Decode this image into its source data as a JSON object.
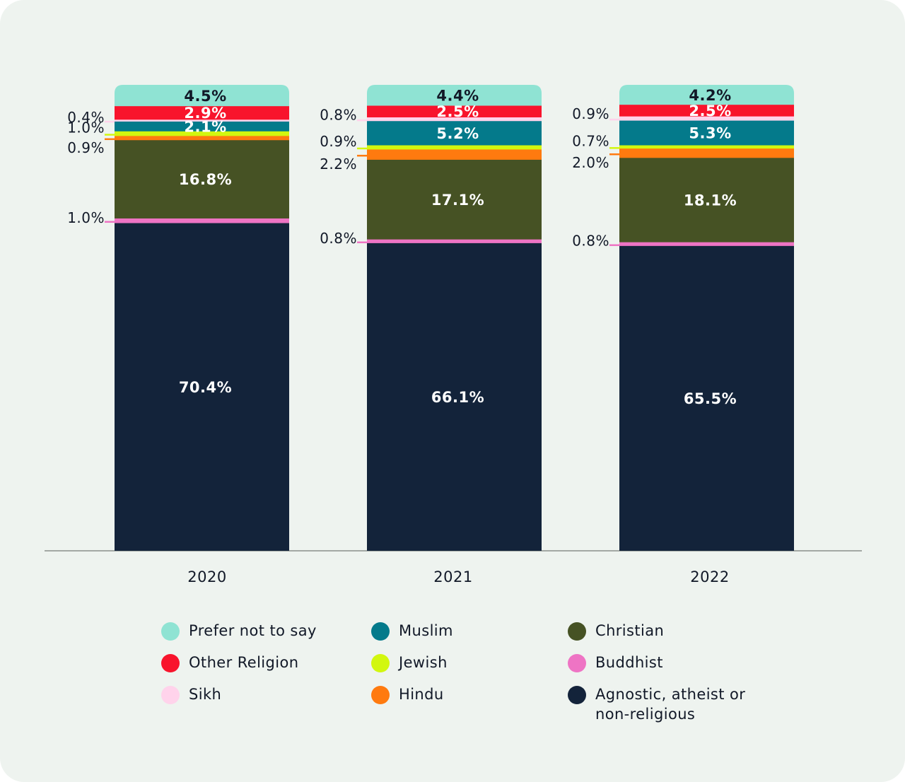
{
  "colors": {
    "background": "#eef3ef",
    "axis": "#8a8f8c",
    "text_dark": "#111827",
    "text_light": "#ffffff"
  },
  "chart_data": {
    "type": "bar",
    "stacked": true,
    "normalized_to": 100,
    "categories": [
      "2020",
      "2021",
      "2022"
    ],
    "ylim": [
      0,
      100
    ],
    "grid": false,
    "legend_position": "bottom",
    "series": [
      {
        "name": "Agnostic, atheist or non-religious",
        "color": "#13233a",
        "values": [
          70.4,
          66.1,
          65.5
        ],
        "labels": [
          "70.4%",
          "66.1%",
          "65.5%"
        ],
        "label_color": "#ffffff"
      },
      {
        "name": "Buddhist",
        "color": "#ee74c4",
        "values": [
          1.0,
          0.8,
          0.8
        ],
        "labels": [
          "1.0%",
          "0.8%",
          "0.8%"
        ]
      },
      {
        "name": "Christian",
        "color": "#465224",
        "values": [
          16.8,
          17.1,
          18.1
        ],
        "labels": [
          "16.8%",
          "17.1%",
          "18.1%"
        ],
        "label_color": "#ffffff"
      },
      {
        "name": "Hindu",
        "color": "#ff7a0f",
        "values": [
          0.9,
          2.2,
          2.0
        ],
        "labels": [
          "0.9%",
          "2.2%",
          "2.0%"
        ]
      },
      {
        "name": "Jewish",
        "color": "#d2f70f",
        "values": [
          1.0,
          0.9,
          0.7
        ],
        "labels": [
          "1.0%",
          "0.9%",
          "0.7%"
        ]
      },
      {
        "name": "Muslim",
        "color": "#047a8b",
        "values": [
          2.1,
          5.2,
          5.3
        ],
        "labels": [
          "2.1%",
          "5.2%",
          "5.3%"
        ],
        "label_color": "#ffffff"
      },
      {
        "name": "Sikh",
        "color": "#ffd3eb",
        "values": [
          0.4,
          0.8,
          0.9
        ],
        "labels": [
          "0.4%",
          "0.8%",
          "0.9%"
        ]
      },
      {
        "name": "Other Religion",
        "color": "#f8142c",
        "values": [
          2.9,
          2.5,
          2.5
        ],
        "labels": [
          "2.9%",
          "2.5%",
          "2.5%"
        ],
        "label_color": "#ffffff"
      },
      {
        "name": "Prefer not to say",
        "color": "#8fe3d3",
        "values": [
          4.5,
          4.4,
          4.2
        ],
        "labels": [
          "4.5%",
          "4.4%",
          "4.2%"
        ],
        "label_color": "#111827"
      }
    ]
  },
  "legend": {
    "columns": [
      [
        {
          "label": "Prefer not to say",
          "color": "#8fe3d3"
        },
        {
          "label": "Other Religion",
          "color": "#f8142c"
        },
        {
          "label": "Sikh",
          "color": "#ffd3eb"
        }
      ],
      [
        {
          "label": "Muslim",
          "color": "#047a8b"
        },
        {
          "label": "Jewish",
          "color": "#d2f70f"
        },
        {
          "label": "Hindu",
          "color": "#ff7a0f"
        }
      ],
      [
        {
          "label": "Christian",
          "color": "#465224"
        },
        {
          "label": "Buddhist",
          "color": "#ee74c4"
        },
        {
          "label": "Agnostic, atheist or non-religious",
          "color": "#13233a"
        }
      ]
    ]
  }
}
